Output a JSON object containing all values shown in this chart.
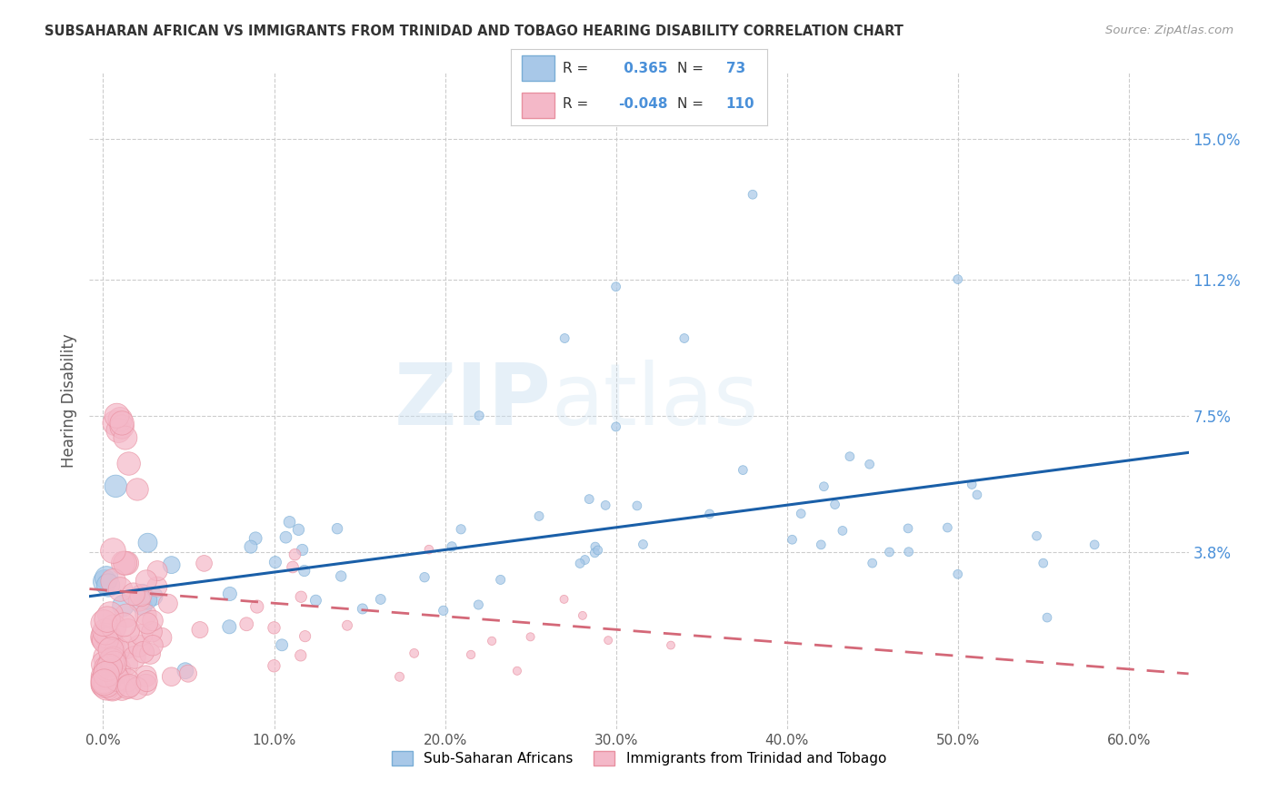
{
  "title": "SUBSAHARAN AFRICAN VS IMMIGRANTS FROM TRINIDAD AND TOBAGO HEARING DISABILITY CORRELATION CHART",
  "source": "Source: ZipAtlas.com",
  "ylabel": "Hearing Disability",
  "ytick_labels": [
    "15.0%",
    "11.2%",
    "7.5%",
    "3.8%"
  ],
  "ytick_values": [
    0.15,
    0.112,
    0.075,
    0.038
  ],
  "xtick_values": [
    0.0,
    0.1,
    0.2,
    0.3,
    0.4,
    0.5,
    0.6
  ],
  "xtick_labels": [
    "0.0%",
    "10.0%",
    "20.0%",
    "30.0%",
    "40.0%",
    "50.0%",
    "60.0%"
  ],
  "xlim": [
    -0.008,
    0.635
  ],
  "ylim": [
    -0.01,
    0.168
  ],
  "legend_r_values": [
    " 0.365",
    "-0.048"
  ],
  "legend_n_values": [
    "73",
    "110"
  ],
  "watermark": "ZIPatlas",
  "series1_color": "#a8c8e8",
  "series1_edge": "#7aaed6",
  "series2_color": "#f4b8c8",
  "series2_edge": "#e890a0",
  "trend1_color": "#1a5fa8",
  "trend2_color": "#d46878",
  "trend1_start_y": 0.026,
  "trend1_end_y": 0.065,
  "trend2_start_y": 0.028,
  "trend2_end_y": 0.005,
  "blue_legend_color": "#a8c8e8",
  "blue_legend_edge": "#7aaed6",
  "pink_legend_color": "#f4b8c8",
  "pink_legend_edge": "#e890a0",
  "legend_text_color": "#4a90d9",
  "grid_color": "#cccccc",
  "title_color": "#333333",
  "source_color": "#999999",
  "ylabel_color": "#555555"
}
